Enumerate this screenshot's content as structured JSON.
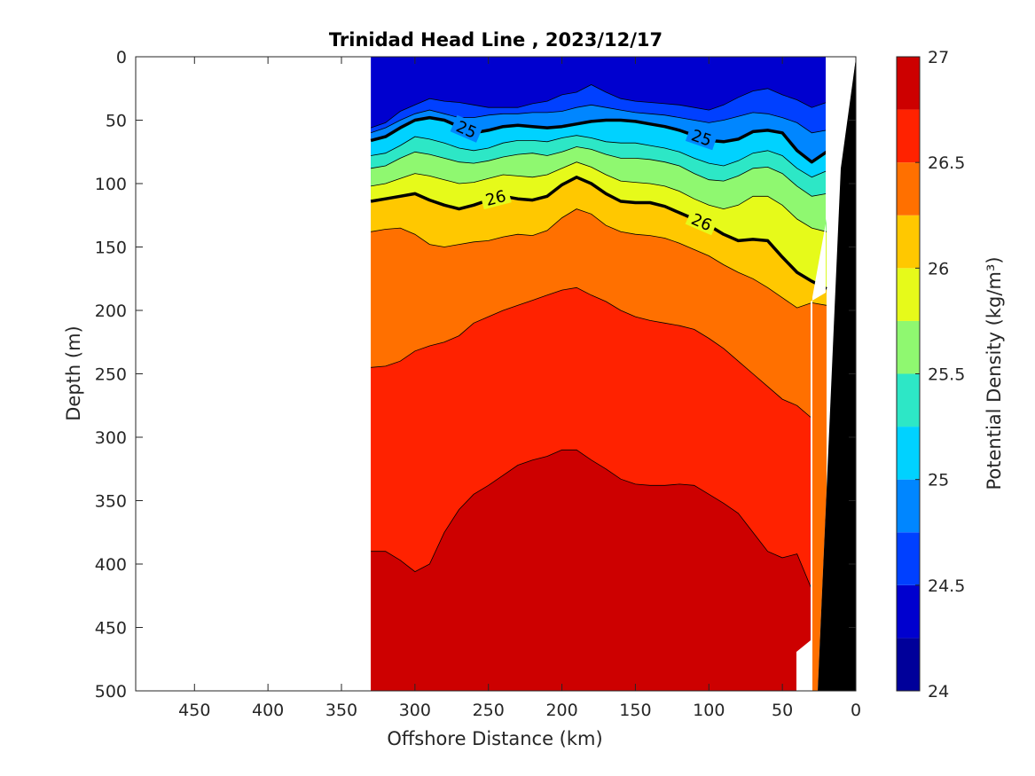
{
  "chart_data": {
    "type": "heatmap",
    "plot_kind": "filled contour section",
    "title": "Trinidad Head Line , 2023/12/17",
    "xlabel": "Offshore Distance (km)",
    "ylabel": "Depth (m)",
    "colorbar_label": "Potential Density (kg/m³)",
    "xlim": [
      490,
      0
    ],
    "ylim": [
      500,
      0
    ],
    "x_reversed": true,
    "y_reversed": true,
    "x_ticks": [
      450,
      400,
      350,
      300,
      250,
      200,
      150,
      100,
      50,
      0
    ],
    "y_ticks": [
      0,
      50,
      100,
      150,
      200,
      250,
      300,
      350,
      400,
      450,
      500
    ],
    "colorbar": {
      "range": [
        24,
        27
      ],
      "tick_values": [
        24,
        24.5,
        25,
        25.5,
        26,
        26.5,
        27
      ],
      "tick_labels": [
        "24",
        "24.5",
        "25",
        "25.5",
        "26",
        "26.5",
        "27"
      ],
      "bands": [
        {
          "lower": 24.0,
          "color": "#00009a"
        },
        {
          "lower": 24.25,
          "color": "#0000cf"
        },
        {
          "lower": 24.5,
          "color": "#0040ff"
        },
        {
          "lower": 24.75,
          "color": "#0086ff"
        },
        {
          "lower": 25.0,
          "color": "#00d2ff"
        },
        {
          "lower": 25.25,
          "color": "#2de7c6"
        },
        {
          "lower": 25.5,
          "color": "#8ff870"
        },
        {
          "lower": 25.75,
          "color": "#e6fa1a"
        },
        {
          "lower": 26.0,
          "color": "#ffc800"
        },
        {
          "lower": 26.25,
          "color": "#ff7000"
        },
        {
          "lower": 26.5,
          "color": "#ff2200"
        },
        {
          "lower": 26.75,
          "color": "#cd0000"
        }
      ]
    },
    "section_range_km": [
      330,
      20
    ],
    "bathymetry_color": "#000000",
    "colors": {
      "frame": "#262626",
      "contour_line": "#000000"
    },
    "highlighted_isopycnals": [
      {
        "level": 25,
        "label": "25",
        "x": [
          330,
          320,
          310,
          300,
          290,
          280,
          270,
          260,
          250,
          240,
          230,
          220,
          210,
          200,
          190,
          180,
          170,
          160,
          150,
          140,
          130,
          120,
          110,
          100,
          90,
          80,
          70,
          60,
          50,
          40,
          30,
          20
        ],
        "depth": [
          66,
          63,
          56,
          50,
          48,
          50,
          55,
          60,
          58,
          55,
          54,
          55,
          56,
          55,
          53,
          51,
          50,
          50,
          51,
          53,
          55,
          58,
          62,
          66,
          67,
          65,
          59,
          58,
          60,
          74,
          83,
          75
        ]
      },
      {
        "level": 26,
        "label": "26",
        "x": [
          330,
          320,
          310,
          300,
          290,
          280,
          270,
          260,
          250,
          240,
          230,
          220,
          210,
          200,
          190,
          180,
          170,
          160,
          150,
          140,
          130,
          120,
          110,
          100,
          90,
          80,
          70,
          60,
          50,
          40,
          30,
          20
        ],
        "depth": [
          114,
          112,
          110,
          108,
          113,
          117,
          120,
          117,
          113,
          110,
          112,
          113,
          110,
          101,
          95,
          100,
          108,
          114,
          115,
          115,
          118,
          123,
          128,
          133,
          140,
          145,
          144,
          145,
          158,
          170,
          177,
          183
        ]
      }
    ],
    "contour_levels": [
      {
        "level": 24.5,
        "x": [
          330,
          320,
          310,
          300,
          290,
          280,
          270,
          260,
          250,
          240,
          230,
          220,
          210,
          200,
          190,
          180,
          170,
          160,
          150,
          140,
          130,
          120,
          110,
          100,
          90,
          80,
          70,
          60,
          50,
          40,
          30,
          20
        ],
        "depth": [
          56,
          52,
          43,
          38,
          33,
          35,
          36,
          38,
          40,
          40,
          40,
          37,
          35,
          30,
          28,
          22,
          28,
          33,
          35,
          36,
          37,
          38,
          40,
          42,
          38,
          32,
          27,
          25,
          30,
          34,
          40,
          36
        ]
      },
      {
        "level": 24.75,
        "x": [
          330,
          320,
          310,
          300,
          290,
          280,
          270,
          260,
          250,
          240,
          230,
          220,
          210,
          200,
          190,
          180,
          170,
          160,
          150,
          140,
          130,
          120,
          110,
          100,
          90,
          80,
          70,
          60,
          50,
          40,
          30,
          20
        ],
        "depth": [
          60,
          56,
          50,
          45,
          42,
          45,
          48,
          48,
          46,
          45,
          45,
          44,
          44,
          43,
          40,
          38,
          40,
          42,
          44,
          45,
          46,
          48,
          50,
          52,
          50,
          47,
          44,
          45,
          48,
          52,
          60,
          58
        ]
      },
      {
        "level": 25.25,
        "x": [
          330,
          320,
          310,
          300,
          290,
          280,
          270,
          260,
          250,
          240,
          230,
          220,
          210,
          200,
          190,
          180,
          170,
          160,
          150,
          140,
          130,
          120,
          110,
          100,
          90,
          80,
          70,
          60,
          50,
          40,
          30,
          20
        ],
        "depth": [
          78,
          76,
          70,
          63,
          65,
          68,
          72,
          74,
          72,
          68,
          66,
          66,
          67,
          64,
          62,
          64,
          67,
          68,
          68,
          70,
          72,
          75,
          80,
          84,
          86,
          82,
          76,
          74,
          78,
          88,
          95,
          90
        ]
      },
      {
        "level": 25.5,
        "x": [
          330,
          320,
          310,
          300,
          290,
          280,
          270,
          260,
          250,
          240,
          230,
          220,
          210,
          200,
          190,
          180,
          170,
          160,
          150,
          140,
          130,
          120,
          110,
          100,
          90,
          80,
          70,
          60,
          50,
          40,
          30,
          20
        ],
        "depth": [
          88,
          86,
          80,
          75,
          77,
          80,
          83,
          84,
          82,
          79,
          77,
          76,
          78,
          75,
          71,
          73,
          77,
          80,
          80,
          81,
          83,
          86,
          92,
          97,
          98,
          94,
          88,
          87,
          92,
          102,
          110,
          108
        ]
      },
      {
        "level": 25.75,
        "x": [
          330,
          320,
          310,
          300,
          290,
          280,
          270,
          260,
          250,
          240,
          230,
          220,
          210,
          200,
          190,
          180,
          170,
          160,
          150,
          140,
          130,
          120,
          110,
          100,
          90,
          80,
          70,
          60,
          50,
          40,
          30,
          20
        ],
        "depth": [
          102,
          100,
          96,
          92,
          94,
          97,
          100,
          99,
          96,
          93,
          94,
          95,
          93,
          88,
          83,
          87,
          93,
          98,
          99,
          100,
          102,
          106,
          112,
          117,
          120,
          117,
          110,
          110,
          117,
          128,
          135,
          138
        ]
      },
      {
        "level": 26.25,
        "x": [
          330,
          320,
          310,
          300,
          290,
          280,
          270,
          260,
          250,
          240,
          230,
          220,
          210,
          200,
          190,
          180,
          170,
          160,
          150,
          140,
          130,
          120,
          110,
          100,
          90,
          80,
          70,
          60,
          50,
          40,
          30,
          20
        ],
        "depth": [
          138,
          136,
          135,
          140,
          148,
          150,
          148,
          146,
          145,
          142,
          140,
          141,
          137,
          127,
          120,
          124,
          133,
          138,
          140,
          141,
          143,
          147,
          152,
          157,
          164,
          170,
          175,
          182,
          190,
          198,
          194,
          196
        ]
      },
      {
        "level": 26.5,
        "x": [
          330,
          320,
          310,
          300,
          290,
          280,
          270,
          260,
          250,
          240,
          230,
          220,
          210,
          200,
          190,
          180,
          170,
          160,
          150,
          140,
          130,
          120,
          110,
          100,
          90,
          80,
          70,
          60,
          50,
          40,
          30
        ],
        "depth": [
          245,
          244,
          240,
          232,
          228,
          225,
          220,
          210,
          205,
          200,
          196,
          192,
          188,
          184,
          182,
          188,
          193,
          200,
          205,
          208,
          210,
          212,
          215,
          222,
          230,
          240,
          250,
          260,
          270,
          275,
          285
        ]
      },
      {
        "level": 26.75,
        "x": [
          330,
          320,
          310,
          300,
          290,
          280,
          270,
          260,
          250,
          240,
          230,
          220,
          210,
          200,
          190,
          180,
          170,
          160,
          150,
          140,
          130,
          120,
          110,
          100,
          90,
          80,
          70,
          60,
          50,
          40,
          30
        ],
        "depth": [
          390,
          390,
          397,
          406,
          400,
          375,
          357,
          345,
          338,
          330,
          322,
          318,
          315,
          310,
          310,
          318,
          325,
          333,
          337,
          338,
          338,
          337,
          338,
          345,
          352,
          360,
          375,
          390,
          395,
          392,
          420
        ]
      }
    ]
  }
}
